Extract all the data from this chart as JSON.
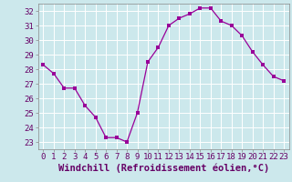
{
  "x": [
    0,
    1,
    2,
    3,
    4,
    5,
    6,
    7,
    8,
    9,
    10,
    11,
    12,
    13,
    14,
    15,
    16,
    17,
    18,
    19,
    20,
    21,
    22,
    23
  ],
  "y": [
    28.3,
    27.7,
    26.7,
    26.7,
    25.5,
    24.7,
    23.3,
    23.3,
    23.0,
    25.0,
    28.5,
    29.5,
    31.0,
    31.5,
    31.8,
    32.2,
    32.2,
    31.3,
    31.0,
    30.3,
    29.2,
    28.3,
    27.5,
    27.2
  ],
  "line_color": "#990099",
  "marker": "s",
  "marker_size": 2.5,
  "bg_color": "#cce8ec",
  "grid_color": "#ffffff",
  "xlabel": "Windchill (Refroidissement éolien,°C)",
  "xlabel_fontsize": 7.5,
  "tick_fontsize": 6.5,
  "ylim": [
    22.5,
    32.5
  ],
  "yticks": [
    23,
    24,
    25,
    26,
    27,
    28,
    29,
    30,
    31,
    32
  ],
  "xticks": [
    0,
    1,
    2,
    3,
    4,
    5,
    6,
    7,
    8,
    9,
    10,
    11,
    12,
    13,
    14,
    15,
    16,
    17,
    18,
    19,
    20,
    21,
    22,
    23
  ],
  "xlim": [
    -0.5,
    23.5
  ]
}
